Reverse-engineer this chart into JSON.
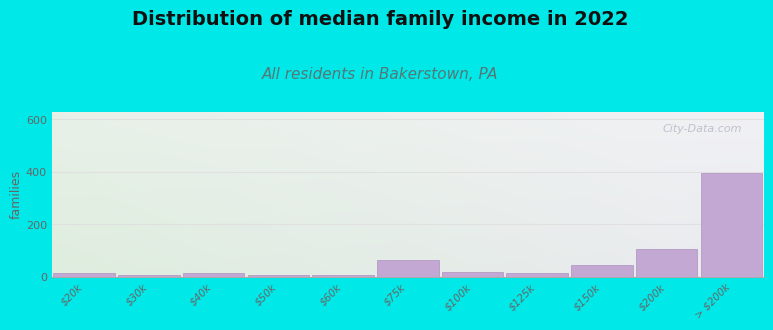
{
  "title": "Distribution of median family income in 2022",
  "subtitle": "All residents in Bakerstown, PA",
  "categories": [
    "$20k",
    "$30k",
    "$40k",
    "$50k",
    "$60k",
    "$75k",
    "$100k",
    "$125k",
    "$150k",
    "$200k",
    "> $200k"
  ],
  "values": [
    15,
    8,
    12,
    8,
    8,
    65,
    18,
    12,
    45,
    105,
    395
  ],
  "bar_color": "#c4a8d4",
  "bar_edge_color": "#b090c0",
  "bg_color": "#00e8e8",
  "plot_bg_top_left": "#e8f2e8",
  "plot_bg_top_right": "#f0f0f5",
  "plot_bg_bottom_left": "#ddeedd",
  "plot_bg_bottom_right": "#e8e8f0",
  "title_fontsize": 14,
  "subtitle_fontsize": 11,
  "title_color": "#111111",
  "subtitle_color": "#557777",
  "ylabel": "families",
  "ylim": [
    0,
    630
  ],
  "yticks": [
    0,
    200,
    400,
    600
  ],
  "watermark": "City-Data.com",
  "grid_color": "#e0e0e0",
  "tick_label_color": "#666666",
  "tick_label_fontsize": 7.5
}
